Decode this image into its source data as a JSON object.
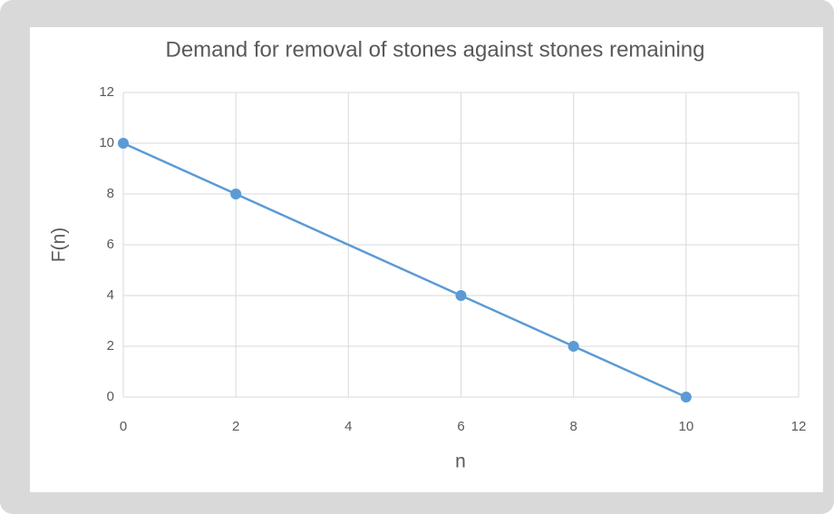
{
  "chart_data": {
    "type": "scatter",
    "title": "Demand for removal of stones against stones remaining",
    "x_label": "n",
    "y_label": "F(n)",
    "x": [
      0,
      2,
      6,
      8,
      10
    ],
    "values": [
      10,
      8,
      4,
      2,
      0
    ],
    "color": "#5b9bd5",
    "lines": true,
    "xlim": [
      0,
      12
    ],
    "ylim": [
      0,
      12
    ],
    "xticks": [
      0,
      2,
      4,
      6,
      8,
      10,
      12
    ],
    "yticks": [
      0,
      2,
      4,
      6,
      8,
      10,
      12
    ],
    "grid": true
  }
}
